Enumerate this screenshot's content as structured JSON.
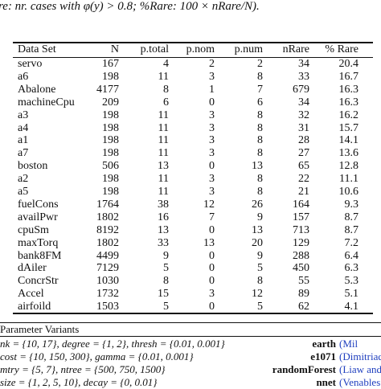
{
  "caption": "re: nr. cases with φ(y) > 0.8; %Rare: 100 × nRare/N).",
  "table": {
    "header": [
      "Data Set",
      "N",
      "p.total",
      "p.nom",
      "p.num",
      "nRare",
      "% Rare"
    ],
    "rows": [
      [
        "servo",
        "167",
        "4",
        "2",
        "2",
        "34",
        "20.4"
      ],
      [
        "a6",
        "198",
        "11",
        "3",
        "8",
        "33",
        "16.7"
      ],
      [
        "Abalone",
        "4177",
        "8",
        "1",
        "7",
        "679",
        "16.3"
      ],
      [
        "machineCpu",
        "209",
        "6",
        "0",
        "6",
        "34",
        "16.3"
      ],
      [
        "a3",
        "198",
        "11",
        "3",
        "8",
        "32",
        "16.2"
      ],
      [
        "a4",
        "198",
        "11",
        "3",
        "8",
        "31",
        "15.7"
      ],
      [
        "a1",
        "198",
        "11",
        "3",
        "8",
        "28",
        "14.1"
      ],
      [
        "a7",
        "198",
        "11",
        "3",
        "8",
        "27",
        "13.6"
      ],
      [
        "boston",
        "506",
        "13",
        "0",
        "13",
        "65",
        "12.8"
      ],
      [
        "a2",
        "198",
        "11",
        "3",
        "8",
        "22",
        "11.1"
      ],
      [
        "a5",
        "198",
        "11",
        "3",
        "8",
        "21",
        "10.6"
      ],
      [
        "fuelCons",
        "1764",
        "38",
        "12",
        "26",
        "164",
        "9.3"
      ],
      [
        "availPwr",
        "1802",
        "16",
        "7",
        "9",
        "157",
        "8.7"
      ],
      [
        "cpuSm",
        "8192",
        "13",
        "0",
        "13",
        "713",
        "8.7"
      ],
      [
        "maxTorq",
        "1802",
        "33",
        "13",
        "20",
        "129",
        "7.2"
      ],
      [
        "bank8FM",
        "4499",
        "9",
        "0",
        "9",
        "288",
        "6.4"
      ],
      [
        "dAiler",
        "7129",
        "5",
        "0",
        "5",
        "450",
        "6.3"
      ],
      [
        "ConcrStr",
        "1030",
        "8",
        "0",
        "8",
        "55",
        "5.3"
      ],
      [
        "Accel",
        "1732",
        "15",
        "3",
        "12",
        "89",
        "5.1"
      ],
      [
        "airfoild",
        "1503",
        "5",
        "0",
        "5",
        "62",
        "4.1"
      ]
    ]
  },
  "params": {
    "header": "Parameter Variants",
    "rows": [
      {
        "variants": "nk = {10, 17}, degree = {1, 2}, thresh = {0.01, 0.001}",
        "package": "earth",
        "citation": "(Mil"
      },
      {
        "variants": "cost = {10, 150, 300}, gamma = {0.01, 0.001}",
        "package": "e1071",
        "citation": "(Dimitriado"
      },
      {
        "variants": "mtry = {5, 7}, ntree = {500, 750, 1500}",
        "package": "randomForest",
        "citation": "(Liaw and"
      },
      {
        "variants": "size = {1, 2, 5, 10}, decay = {0, 0.01}",
        "package": "nnet",
        "citation": "(Venables and"
      }
    ]
  }
}
